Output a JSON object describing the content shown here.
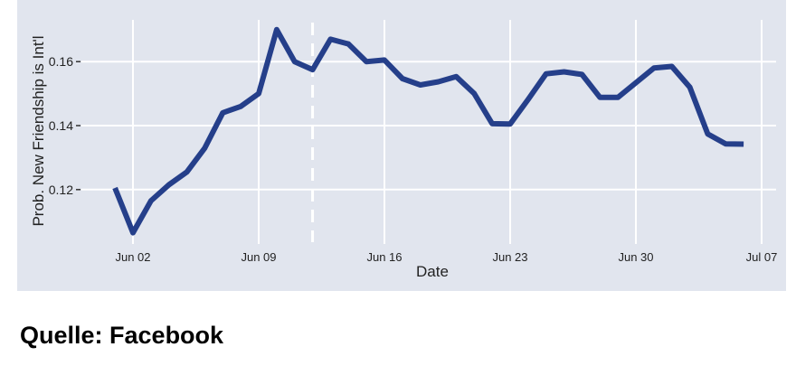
{
  "chart_data": {
    "type": "line",
    "title": "",
    "xlabel": "Date",
    "ylabel": "Prob. New Friendship is Int'l",
    "ylim": [
      0.1,
      0.17
    ],
    "yticks": [
      0.12,
      0.14,
      0.16
    ],
    "ytick_labels": [
      "0.12",
      "0.14",
      "0.16"
    ],
    "xticks_day": [
      2,
      9,
      16,
      23,
      30,
      37
    ],
    "xtick_labels": [
      "Jun 02",
      "Jun 09",
      "Jun 16",
      "Jun 23",
      "Jun 30",
      "Jul 07"
    ],
    "grid": true,
    "marker_line_day": 12,
    "series": [
      {
        "name": "Prob. New Friendship is Int'l",
        "color": "#253f8a",
        "x_day": [
          1,
          2,
          3,
          4,
          5,
          6,
          7,
          8,
          9,
          10,
          11,
          12,
          13,
          14,
          15,
          16,
          17,
          18,
          19,
          20,
          21,
          22,
          23,
          24,
          25,
          26,
          27,
          28,
          29,
          30,
          31,
          32,
          33,
          34,
          35,
          36
        ],
        "values": [
          0.1205,
          0.1065,
          0.1165,
          0.1215,
          0.1255,
          0.133,
          0.144,
          0.146,
          0.15,
          0.17,
          0.16,
          0.1575,
          0.167,
          0.1655,
          0.16,
          0.1605,
          0.1547,
          0.1527,
          0.1537,
          0.1553,
          0.15,
          0.1406,
          0.1405,
          0.1482,
          0.1562,
          0.1568,
          0.156,
          0.1488,
          0.1488,
          0.1534,
          0.158,
          0.1585,
          0.152,
          0.1374,
          0.1343,
          0.1342
        ]
      }
    ]
  },
  "source": "Quelle: Facebook",
  "colors": {
    "panel": "#e1e5ee",
    "grid": "#ffffff",
    "line": "#253f8a"
  }
}
